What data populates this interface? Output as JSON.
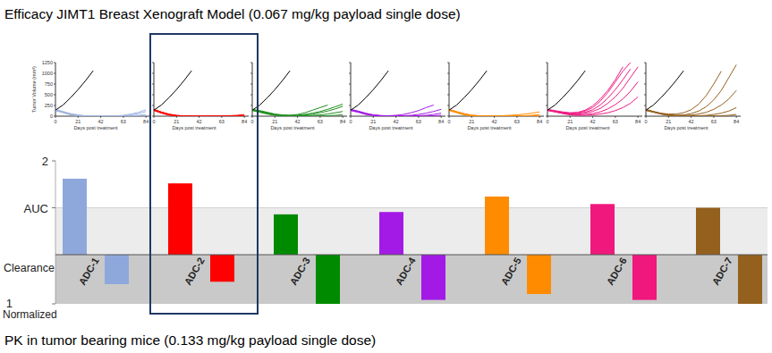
{
  "title": "Efficacy JIMT1 Breast Xenograft Model (0.067 mg/kg payload single dose)",
  "chart_data": [
    {
      "type": "line",
      "x": [
        0,
        7,
        14,
        21,
        28,
        35,
        42,
        49,
        56,
        63,
        70,
        77,
        84
      ],
      "xlim": [
        0,
        88
      ],
      "ylim": [
        0,
        1250
      ],
      "xticks": [
        0,
        21,
        42,
        63,
        84
      ],
      "yticks": [
        0,
        250,
        500,
        750,
        1000,
        1250
      ],
      "x_label": "Days post treatment",
      "y_label": "Tumor Volume (mm³)",
      "series": [
        {
          "color": "#000000",
          "values": [
            140,
            260,
            430,
            620,
            830,
            1060,
            null,
            null,
            null,
            null,
            null,
            null,
            null
          ]
        },
        {
          "color": "#9fb4e0",
          "values": [
            140,
            90,
            40,
            15,
            5,
            0,
            0,
            0,
            0,
            10,
            30,
            60,
            110
          ]
        },
        {
          "color": "#9fb4e0",
          "values": [
            150,
            100,
            50,
            20,
            5,
            0,
            0,
            0,
            0,
            0,
            10,
            20,
            40
          ]
        },
        {
          "color": "#9fb4e0",
          "values": [
            130,
            80,
            30,
            10,
            0,
            0,
            0,
            0,
            0,
            0,
            0,
            0,
            10
          ]
        },
        {
          "color": "#9fb4e0",
          "values": [
            160,
            110,
            60,
            30,
            10,
            5,
            0,
            0,
            5,
            20,
            50,
            90,
            150
          ]
        }
      ]
    },
    {
      "type": "line",
      "x": [
        0,
        7,
        14,
        21,
        28,
        35,
        42,
        49,
        56,
        63,
        70,
        77,
        84
      ],
      "xlim": [
        0,
        88
      ],
      "ylim": [
        0,
        1250
      ],
      "xticks": [
        0,
        21,
        42,
        63,
        84
      ],
      "yticks": [
        0,
        250,
        500,
        750,
        1000,
        1250
      ],
      "tick_labels": "x",
      "x_label": "Days post treatment",
      "series": [
        {
          "color": "#000000",
          "values": [
            140,
            260,
            430,
            620,
            830,
            1060,
            null,
            null,
            null,
            null,
            null,
            null,
            null
          ]
        },
        {
          "color": "#ff0000",
          "values": [
            140,
            80,
            30,
            10,
            0,
            0,
            0,
            0,
            0,
            0,
            0,
            0,
            0
          ]
        },
        {
          "color": "#ff0000",
          "values": [
            160,
            100,
            50,
            20,
            5,
            0,
            0,
            0,
            0,
            0,
            0,
            0,
            10
          ]
        },
        {
          "color": "#ff0000",
          "values": [
            150,
            90,
            40,
            15,
            5,
            0,
            0,
            0,
            0,
            0,
            10,
            20,
            40
          ]
        },
        {
          "color": "#ff0000",
          "values": [
            130,
            70,
            25,
            5,
            0,
            0,
            0,
            0,
            0,
            0,
            0,
            0,
            0
          ]
        }
      ]
    },
    {
      "type": "line",
      "x": [
        0,
        7,
        14,
        21,
        28,
        35,
        42,
        49,
        56,
        63,
        70,
        77,
        84
      ],
      "xlim": [
        0,
        88
      ],
      "ylim": [
        0,
        1250
      ],
      "xticks": [
        0,
        21,
        42,
        63,
        84
      ],
      "yticks": [
        0,
        250,
        500,
        750,
        1000,
        1250
      ],
      "tick_labels": "x",
      "x_label": "Days post treatment",
      "series": [
        {
          "color": "#000000",
          "values": [
            140,
            260,
            430,
            620,
            830,
            1060,
            null,
            null,
            null,
            null,
            null,
            null,
            null
          ]
        },
        {
          "color": "#1f8f1f",
          "values": [
            150,
            120,
            80,
            40,
            20,
            20,
            40,
            80,
            140,
            200,
            260,
            null,
            null
          ]
        },
        {
          "color": "#1f8f1f",
          "values": [
            140,
            100,
            60,
            30,
            15,
            10,
            20,
            40,
            70,
            110,
            160,
            220,
            280
          ]
        },
        {
          "color": "#1f8f1f",
          "values": [
            160,
            130,
            90,
            50,
            30,
            20,
            20,
            30,
            50,
            80,
            120,
            170,
            230
          ]
        },
        {
          "color": "#1f8f1f",
          "values": [
            130,
            90,
            50,
            20,
            10,
            5,
            5,
            10,
            20,
            30,
            50,
            80,
            110
          ]
        },
        {
          "color": "#1f8f1f",
          "values": [
            150,
            110,
            70,
            30,
            10,
            0,
            0,
            0,
            0,
            0,
            10,
            20,
            30
          ]
        }
      ]
    },
    {
      "type": "line",
      "x": [
        0,
        7,
        14,
        21,
        28,
        35,
        42,
        49,
        56,
        63,
        70,
        77,
        84
      ],
      "xlim": [
        0,
        88
      ],
      "ylim": [
        0,
        1250
      ],
      "xticks": [
        0,
        21,
        42,
        63,
        84
      ],
      "yticks": [
        0,
        250,
        500,
        750,
        1000,
        1250
      ],
      "tick_labels": "x",
      "x_label": "Days post treatment",
      "series": [
        {
          "color": "#000000",
          "values": [
            140,
            260,
            430,
            620,
            830,
            1060,
            null,
            null,
            null,
            null,
            null,
            null,
            null
          ]
        },
        {
          "color": "#a31ae6",
          "values": [
            150,
            110,
            60,
            30,
            15,
            10,
            20,
            40,
            80,
            130,
            200,
            260,
            null
          ]
        },
        {
          "color": "#a31ae6",
          "values": [
            140,
            100,
            50,
            20,
            10,
            5,
            5,
            10,
            20,
            40,
            70,
            110,
            160
          ]
        },
        {
          "color": "#a31ae6",
          "values": [
            160,
            120,
            70,
            30,
            10,
            5,
            0,
            0,
            5,
            10,
            20,
            40,
            70
          ]
        },
        {
          "color": "#a31ae6",
          "values": [
            130,
            90,
            40,
            15,
            5,
            0,
            0,
            0,
            0,
            0,
            0,
            10,
            20
          ]
        }
      ]
    },
    {
      "type": "line",
      "x": [
        0,
        7,
        14,
        21,
        28,
        35,
        42,
        49,
        56,
        63,
        70,
        77,
        84
      ],
      "xlim": [
        0,
        88
      ],
      "ylim": [
        0,
        1250
      ],
      "xticks": [
        0,
        21,
        42,
        63,
        84
      ],
      "yticks": [
        0,
        250,
        500,
        750,
        1000,
        1250
      ],
      "tick_labels": "x",
      "x_label": "Days post treatment",
      "series": [
        {
          "color": "#000000",
          "values": [
            140,
            260,
            430,
            620,
            830,
            1060,
            null,
            null,
            null,
            null,
            null,
            null,
            null
          ]
        },
        {
          "color": "#ff8c00",
          "values": [
            150,
            100,
            50,
            20,
            10,
            5,
            5,
            10,
            20,
            30,
            50,
            70,
            100
          ]
        },
        {
          "color": "#ff8c00",
          "values": [
            140,
            90,
            40,
            15,
            5,
            0,
            0,
            0,
            0,
            5,
            10,
            20,
            40
          ]
        },
        {
          "color": "#ff8c00",
          "values": [
            160,
            110,
            60,
            25,
            10,
            5,
            0,
            0,
            0,
            0,
            0,
            0,
            10
          ]
        },
        {
          "color": "#ff8c00",
          "values": [
            130,
            80,
            30,
            10,
            0,
            0,
            0,
            0,
            0,
            0,
            0,
            0,
            0
          ]
        }
      ]
    },
    {
      "type": "line",
      "x": [
        0,
        7,
        14,
        21,
        28,
        35,
        42,
        49,
        56,
        63,
        70,
        77,
        84
      ],
      "xlim": [
        0,
        88
      ],
      "ylim": [
        0,
        1250
      ],
      "xticks": [
        0,
        21,
        42,
        63,
        84
      ],
      "yticks": [
        0,
        250,
        500,
        750,
        1000,
        1250
      ],
      "tick_labels": "x",
      "x_label": "Days post treatment",
      "series": [
        {
          "color": "#000000",
          "values": [
            140,
            260,
            430,
            620,
            830,
            1060,
            null,
            null,
            null,
            null,
            null,
            null,
            null
          ]
        },
        {
          "color": "#ee1c84",
          "values": [
            150,
            120,
            90,
            70,
            80,
            120,
            200,
            350,
            550,
            800,
            1050,
            1250,
            null
          ]
        },
        {
          "color": "#ee1c84",
          "values": [
            140,
            110,
            80,
            60,
            60,
            90,
            150,
            260,
            420,
            620,
            850,
            1100,
            null
          ]
        },
        {
          "color": "#ee1c84",
          "values": [
            160,
            130,
            100,
            80,
            90,
            140,
            240,
            400,
            600,
            850,
            1150,
            null,
            null
          ]
        },
        {
          "color": "#ee1c84",
          "values": [
            130,
            100,
            70,
            50,
            50,
            70,
            110,
            180,
            300,
            450,
            650,
            900,
            1150
          ]
        },
        {
          "color": "#ee1c84",
          "values": [
            150,
            110,
            70,
            40,
            30,
            40,
            60,
            100,
            170,
            270,
            400,
            580,
            800
          ]
        },
        {
          "color": "#ee1c84",
          "values": [
            140,
            100,
            60,
            30,
            20,
            20,
            30,
            50,
            80,
            130,
            200,
            300,
            450
          ]
        }
      ]
    },
    {
      "type": "line",
      "x": [
        0,
        7,
        14,
        21,
        28,
        35,
        42,
        49,
        56,
        63,
        70,
        77,
        84
      ],
      "xlim": [
        0,
        88
      ],
      "ylim": [
        0,
        1250
      ],
      "xticks": [
        0,
        21,
        42,
        63,
        84
      ],
      "yticks": [
        0,
        250,
        500,
        750,
        1000,
        1250
      ],
      "tick_labels": "x",
      "x_label": "Days post treatment",
      "series": [
        {
          "color": "#000000",
          "values": [
            140,
            260,
            430,
            620,
            830,
            1060,
            null,
            null,
            null,
            null,
            null,
            null,
            null
          ]
        },
        {
          "color": "#94601e",
          "values": [
            150,
            110,
            70,
            50,
            50,
            80,
            150,
            280,
            480,
            750,
            1050,
            null,
            null
          ]
        },
        {
          "color": "#94601e",
          "values": [
            140,
            100,
            60,
            30,
            20,
            30,
            60,
            120,
            220,
            380,
            600,
            900,
            1200
          ]
        },
        {
          "color": "#94601e",
          "values": [
            160,
            110,
            60,
            30,
            15,
            15,
            25,
            50,
            90,
            160,
            260,
            400,
            600
          ]
        },
        {
          "color": "#94601e",
          "values": [
            130,
            90,
            50,
            20,
            10,
            5,
            5,
            10,
            20,
            40,
            70,
            120,
            200
          ]
        },
        {
          "color": "#94601e",
          "values": [
            150,
            100,
            50,
            20,
            5,
            0,
            0,
            0,
            0,
            5,
            10,
            20,
            40
          ]
        }
      ]
    },
    {
      "type": "bar",
      "title": "PK in tumor bearing mice (0.133 mg/kg payload single dose)",
      "categories": [
        "ADC-1",
        "ADC-2",
        "ADC-3",
        "ADC-4",
        "ADC-5",
        "ADC-6",
        "ADC-7"
      ],
      "colors": [
        "#8fa8dc",
        "#ff0000",
        "#008a00",
        "#a31ae6",
        "#ff8c00",
        "#f0187c",
        "#94601e"
      ],
      "ylim": [
        0,
        2
      ],
      "yticks": [
        {
          "value": 1,
          "label": "AUC"
        },
        2
      ],
      "y2lim": [
        0,
        1
      ],
      "y2ticks": [
        1
      ],
      "y2_label": "Clearance",
      "y2_sublabel": "Normalized",
      "series": [
        {
          "values": [
            1.62,
            1.52,
            0.86,
            0.91,
            1.24,
            1.08,
            1.0
          ]
        },
        {
          "axis": "y2",
          "values": [
            0.6,
            0.55,
            1.0,
            0.92,
            0.8,
            0.92,
            1.0
          ]
        }
      ]
    }
  ]
}
